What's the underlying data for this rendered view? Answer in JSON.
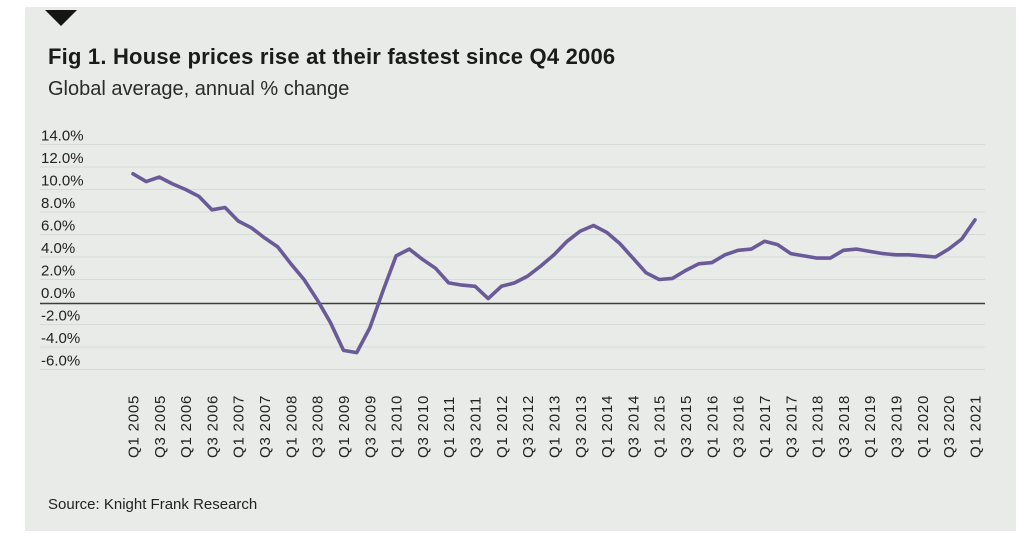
{
  "figure": {
    "title": "Fig 1. House prices rise at their fastest since Q4 2006",
    "subtitle": "Global average, annual % change",
    "source": "Source: Knight Frank Research",
    "marker_icon": "down-triangle-icon"
  },
  "colors": {
    "page_bg": "#ffffff",
    "card_bg": "#e8ebe7",
    "line": "#6a5b98",
    "zero_line": "#3d3d3b",
    "gridline": "#d7dbd6",
    "text": "#222220"
  },
  "chart_data": {
    "type": "line",
    "title": "Fig 1. House prices rise at their fastest since Q4 2006",
    "subtitle": "Global average, annual % change",
    "source": "Source: Knight Frank Research",
    "grid": "horizontal",
    "zero_line": true,
    "legend": "none",
    "ylim": [
      -7,
      15
    ],
    "yticks": [
      14,
      12,
      10,
      8,
      6,
      4,
      2,
      0,
      -2,
      -4,
      -6
    ],
    "ytick_labels": [
      "14.0%",
      "12.0%",
      "10.0%",
      "8.0%",
      "6.0%",
      "4.0%",
      "2.0%",
      "0.0%",
      "-2.0%",
      "-4.0%",
      "-6.0%"
    ],
    "x_label_step": 2,
    "categories": [
      "Q1 2005",
      "Q2 2005",
      "Q3 2005",
      "Q4 2005",
      "Q1 2006",
      "Q2 2006",
      "Q3 2006",
      "Q4 2006",
      "Q1 2007",
      "Q2 2007",
      "Q3 2007",
      "Q4 2007",
      "Q1 2008",
      "Q2 2008",
      "Q3 2008",
      "Q4 2008",
      "Q1 2009",
      "Q2 2009",
      "Q3 2009",
      "Q4 2009",
      "Q1 2010",
      "Q2 2010",
      "Q3 2010",
      "Q4 2010",
      "Q1 2011",
      "Q2 2011",
      "Q3 2011",
      "Q4 2011",
      "Q1 2012",
      "Q2 2012",
      "Q3 2012",
      "Q4 2012",
      "Q1 2013",
      "Q2 2013",
      "Q3 2013",
      "Q4 2013",
      "Q1 2014",
      "Q2 2014",
      "Q3 2014",
      "Q4 2014",
      "Q1 2015",
      "Q2 2015",
      "Q3 2015",
      "Q4 2015",
      "Q1 2016",
      "Q2 2016",
      "Q3 2016",
      "Q4 2016",
      "Q1 2017",
      "Q2 2017",
      "Q3 2017",
      "Q4 2017",
      "Q1 2018",
      "Q2 2018",
      "Q3 2018",
      "Q4 2018",
      "Q1 2019",
      "Q2 2019",
      "Q3 2019",
      "Q4 2019",
      "Q1 2020",
      "Q2 2020",
      "Q3 2020",
      "Q4 2020",
      "Q1 2021"
    ],
    "series": [
      {
        "name": "Global average, annual % change",
        "values": [
          11.4,
          10.7,
          11.1,
          10.5,
          10.0,
          9.4,
          8.2,
          8.4,
          7.2,
          6.6,
          5.7,
          4.9,
          3.4,
          2.0,
          0.2,
          -1.8,
          -4.3,
          -4.5,
          -2.3,
          1.0,
          4.1,
          4.7,
          3.8,
          3.0,
          1.7,
          1.5,
          1.4,
          0.3,
          1.4,
          1.7,
          2.3,
          3.2,
          4.2,
          5.4,
          6.3,
          6.8,
          6.2,
          5.2,
          3.9,
          2.6,
          2.0,
          2.1,
          2.8,
          3.4,
          3.5,
          4.2,
          4.6,
          4.7,
          5.4,
          5.1,
          4.3,
          4.1,
          3.9,
          3.9,
          4.6,
          4.7,
          4.5,
          4.3,
          4.2,
          4.2,
          4.1,
          4.0,
          4.7,
          5.6,
          7.3
        ]
      }
    ]
  }
}
